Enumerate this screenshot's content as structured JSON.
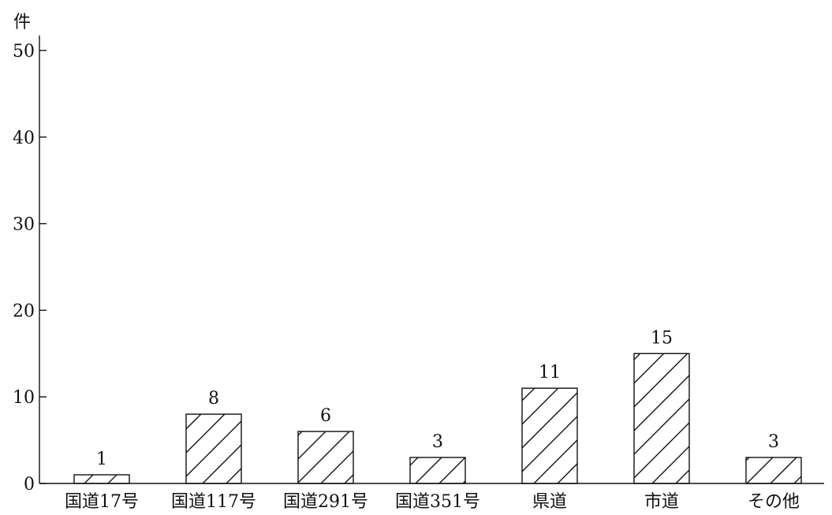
{
  "chart_data": {
    "type": "bar",
    "title": "",
    "xlabel": "",
    "ylabel": "件",
    "ylim": [
      0,
      50
    ],
    "yticks": [
      0,
      10,
      20,
      30,
      40,
      50
    ],
    "categories": [
      "国道17号",
      "国道117号",
      "国道291号",
      "国道351号",
      "県道",
      "市道",
      "その他"
    ],
    "values": [
      1,
      8,
      6,
      3,
      11,
      15,
      3
    ],
    "data_labels": [
      "1",
      "8",
      "6",
      "3",
      "11",
      "15",
      "3"
    ],
    "bar_fill": "hatched",
    "grid": false,
    "legend": "none"
  }
}
